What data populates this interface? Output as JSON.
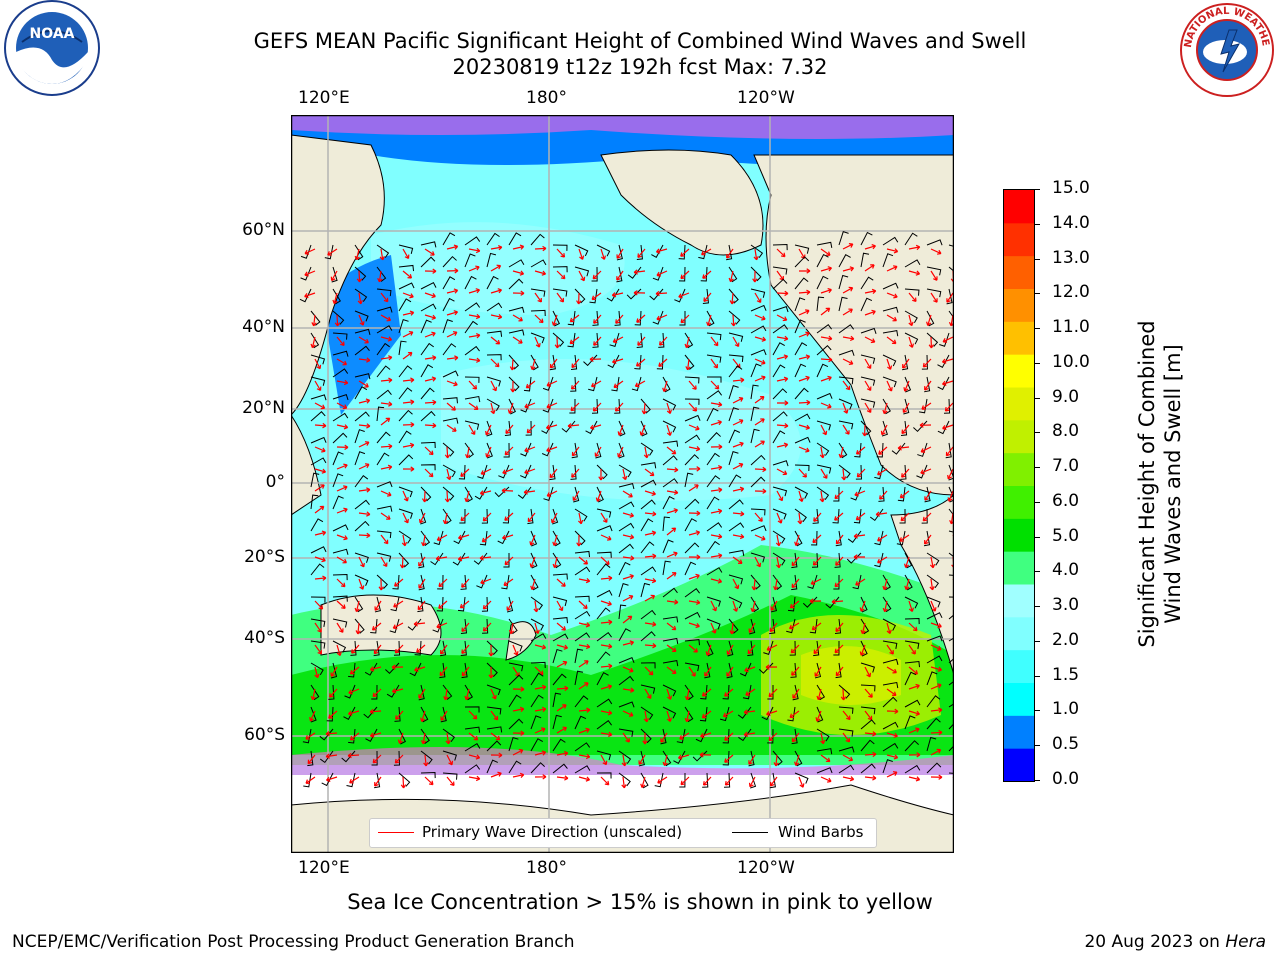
{
  "header": {
    "title": "GEFS MEAN Pacific Significant Height of Combined Wind Waves and Swell",
    "subtitle": "20230819 t12z 192h fcst   Max: 7.32"
  },
  "logos": {
    "left": "noaa-logo",
    "right": "nws-logo"
  },
  "map": {
    "lon_ticks": [
      "120°E",
      "180°",
      "120°W"
    ],
    "lat_ticks": [
      "60°N",
      "40°N",
      "20°N",
      "0°",
      "20°S",
      "40°S",
      "60°S"
    ],
    "legend": {
      "wave_label": "Primary Wave Direction (unscaled)",
      "wind_label": "Wind Barbs",
      "wave_color": "#ff0000",
      "wind_color": "#000000"
    },
    "colors": {
      "land": "#efecd9",
      "ocean_low": "#7fffff",
      "grid": "#b3b3b3"
    }
  },
  "colorbar": {
    "title_line1": "Significant Height of Combined",
    "title_line2": "Wind Waves and Swell [m]",
    "ticks": [
      "0.0",
      "0.5",
      "1.0",
      "1.5",
      "2.0",
      "3.0",
      "4.0",
      "5.0",
      "6.0",
      "7.0",
      "8.0",
      "9.0",
      "10.0",
      "11.0",
      "12.0",
      "13.0",
      "14.0",
      "15.0"
    ],
    "colors": [
      "#0000ff",
      "#0080ff",
      "#00ffff",
      "#40ffff",
      "#80ffff",
      "#a0ffff",
      "#40ff80",
      "#00e000",
      "#40f000",
      "#80f000",
      "#c0f000",
      "#e0f000",
      "#ffff00",
      "#ffc000",
      "#ff9000",
      "#ff6000",
      "#ff3000",
      "#ff0000"
    ]
  },
  "footer": {
    "ice_note": "Sea Ice Concentration > 15% is shown in pink to yellow",
    "branch": "NCEP/EMC/Verification Post Processing Product Generation Branch",
    "date_prefix": "20 Aug 2023 on ",
    "machine": "Hera"
  }
}
